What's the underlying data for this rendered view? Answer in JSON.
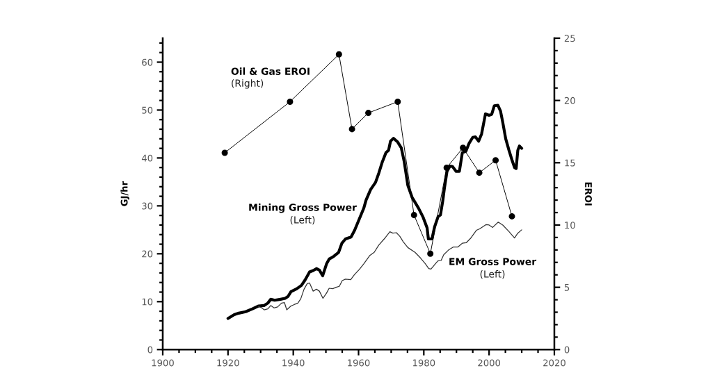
{
  "chart_data": {
    "type": "line",
    "ylabel": "GJ/hr",
    "y2label": "EROI",
    "xlim": [
      1900,
      2020
    ],
    "xticks": [
      1900,
      {
        "value": 1905,
        "label": null
      },
      {
        "value": 1910,
        "label": null
      },
      {
        "value": 1915,
        "label": null
      },
      1920,
      {
        "value": 1925,
        "label": null
      },
      {
        "value": 1930,
        "label": null
      },
      {
        "value": 1935,
        "label": null
      },
      1940,
      {
        "value": 1945,
        "label": null
      },
      {
        "value": 1950,
        "label": null
      },
      {
        "value": 1955,
        "label": null
      },
      1960,
      {
        "value": 1965,
        "label": null
      },
      {
        "value": 1970,
        "label": null
      },
      {
        "value": 1975,
        "label": null
      },
      1980,
      {
        "value": 1985,
        "label": null
      },
      {
        "value": 1990,
        "label": null
      },
      {
        "value": 1995,
        "label": null
      },
      2000,
      {
        "value": 2005,
        "label": null
      },
      {
        "value": 2010,
        "label": null
      },
      {
        "value": 2015,
        "label": null
      },
      2020
    ],
    "ylim": [
      0,
      65
    ],
    "yticks": [
      0,
      {
        "value": 2,
        "label": null
      },
      {
        "value": 4,
        "label": null
      },
      {
        "value": 6,
        "label": null
      },
      {
        "value": 8,
        "label": null
      },
      10,
      {
        "value": 12,
        "label": null
      },
      {
        "value": 14,
        "label": null
      },
      {
        "value": 16,
        "label": null
      },
      {
        "value": 18,
        "label": null
      },
      20,
      {
        "value": 22,
        "label": null
      },
      {
        "value": 24,
        "label": null
      },
      {
        "value": 26,
        "label": null
      },
      {
        "value": 28,
        "label": null
      },
      30,
      {
        "value": 32,
        "label": null
      },
      {
        "value": 34,
        "label": null
      },
      {
        "value": 36,
        "label": null
      },
      {
        "value": 38,
        "label": null
      },
      40,
      {
        "value": 42,
        "label": null
      },
      {
        "value": 44,
        "label": null
      },
      {
        "value": 46,
        "label": null
      },
      {
        "value": 48,
        "label": null
      },
      50,
      {
        "value": 52,
        "label": null
      },
      {
        "value": 54,
        "label": null
      },
      {
        "value": 56,
        "label": null
      },
      {
        "value": 58,
        "label": null
      },
      60,
      {
        "value": 62,
        "label": null
      },
      {
        "value": 64,
        "label": null
      }
    ],
    "y2lim": [
      0,
      25
    ],
    "y2ticks": [
      0,
      {
        "value": 1,
        "label": null
      },
      {
        "value": 2,
        "label": null
      },
      {
        "value": 3,
        "label": null
      },
      {
        "value": 4,
        "label": null
      },
      5,
      {
        "value": 6,
        "label": null
      },
      {
        "value": 7,
        "label": null
      },
      {
        "value": 8,
        "label": null
      },
      {
        "value": 9,
        "label": null
      },
      10,
      {
        "value": 11,
        "label": null
      },
      {
        "value": 12,
        "label": null
      },
      {
        "value": 13,
        "label": null
      },
      {
        "value": 14,
        "label": null
      },
      15,
      {
        "value": 16,
        "label": null
      },
      {
        "value": 17,
        "label": null
      },
      {
        "value": 18,
        "label": null
      },
      {
        "value": 19,
        "label": null
      },
      20,
      {
        "value": 21,
        "label": null
      },
      {
        "value": 22,
        "label": null
      },
      {
        "value": 23,
        "label": null
      },
      {
        "value": 24,
        "label": null
      },
      25
    ],
    "annotations": [
      "(Right)",
      "(Left)",
      "(Left)"
    ],
    "series": [
      {
        "name": "Oil & Gas EROI",
        "axis": "y2",
        "color": "#000000",
        "marker": "circle",
        "line_style": "solid",
        "x": [
          1919,
          1939,
          1954,
          1958,
          1963,
          1972,
          1977,
          1982,
          1987,
          1992,
          1997,
          2002,
          2007
        ],
        "values": [
          15.8,
          19.9,
          23.7,
          17.7,
          19.0,
          19.9,
          10.8,
          7.7,
          14.6,
          16.2,
          14.2,
          15.2,
          10.7
        ]
      },
      {
        "name": "Mining Gross Power",
        "color": "#000000",
        "marker": "none",
        "line_style": "solid",
        "x": [
          1920,
          1921.9,
          1923.3,
          1925.4,
          1927.5,
          1929.3,
          1931.1,
          1932.2,
          1933.1,
          1934.3,
          1936.1,
          1937.5,
          1938.4,
          1939.3,
          1941.1,
          1942.5,
          1943.6,
          1945,
          1946.1,
          1947.1,
          1948,
          1949,
          1950.2,
          1951,
          1952.3,
          1953.9,
          1954.9,
          1956,
          1957.7,
          1958.8,
          1961.6,
          1962.3,
          1963.7,
          1965.2,
          1966.2,
          1967.3,
          1968.4,
          1969.2,
          1969.8,
          1970.7,
          1971.9,
          1973.1,
          1974,
          1975.1,
          1976.4,
          1978.4,
          1979.8,
          1981,
          1981.4,
          1982.5,
          1983.3,
          1984.4,
          1985.1,
          1985.8,
          1986.3,
          1987.1,
          1988,
          1988.8,
          1989.9,
          1990.9,
          1991.8,
          1992.9,
          1993.9,
          1995,
          1995.8,
          1996.8,
          1997.7,
          1998.9,
          2000,
          2000.8,
          2001.6,
          2002.7,
          2003.5,
          2004.2,
          2005.1,
          2006.1,
          2007.1,
          2007.8,
          2008.3,
          2008.8,
          2009.3,
          2010
        ],
        "values": [
          6.5,
          7.3,
          7.6,
          7.9,
          8.5,
          9.1,
          9.2,
          9.7,
          10.5,
          10.3,
          10.5,
          10.7,
          11.1,
          12.1,
          12.7,
          13.4,
          14.5,
          16.2,
          16.5,
          16.9,
          16.6,
          15.4,
          17.9,
          18.9,
          19.4,
          20.3,
          22.2,
          23.1,
          23.5,
          24.9,
          29.5,
          31.2,
          33.4,
          34.9,
          36.8,
          39.2,
          41.1,
          41.6,
          43.5,
          44.1,
          43.4,
          42.1,
          39.2,
          34.3,
          31.8,
          29.5,
          27.6,
          25.4,
          23.1,
          23.1,
          25.6,
          27.8,
          28.1,
          31.0,
          33.6,
          37.2,
          38.3,
          38.2,
          37.2,
          37.2,
          41.1,
          41.4,
          43.1,
          44.3,
          44.4,
          43.5,
          45.0,
          49.2,
          48.9,
          49.1,
          50.9,
          51.0,
          49.8,
          47.4,
          44.0,
          41.6,
          39.4,
          38.0,
          37.8,
          41.6,
          42.5,
          42.0
        ]
      },
      {
        "name": "EM Gross Power",
        "color": "#333333",
        "marker": "none",
        "line_style": "solid",
        "x": [
          1929.3,
          1930.1,
          1931.1,
          1932.2,
          1933.1,
          1934.1,
          1935.2,
          1936.4,
          1937.3,
          1938,
          1939.3,
          1940.3,
          1941.4,
          1942.3,
          1943.3,
          1944.3,
          1945,
          1946.1,
          1947.1,
          1948,
          1949.1,
          1950.2,
          1951,
          1952.1,
          1953.1,
          1954.1,
          1955,
          1956,
          1957.6,
          1958.7,
          1960.2,
          1961.6,
          1963.4,
          1964.8,
          1966.2,
          1968,
          1969.6,
          1970.5,
          1971.6,
          1972.6,
          1973.7,
          1975.1,
          1977.3,
          1979,
          1980.5,
          1981.5,
          1982.2,
          1983.3,
          1984.3,
          1985.3,
          1986.1,
          1987.6,
          1989,
          1990.4,
          1991.8,
          1993,
          1994.3,
          1996.1,
          1997.1,
          1999.1,
          2000,
          2001.1,
          2002.8,
          2004.2,
          2006,
          2007.8,
          2008.8,
          2010
        ],
        "values": [
          9.0,
          8.8,
          8.3,
          8.5,
          9.2,
          8.7,
          8.9,
          9.7,
          9.8,
          8.3,
          9.1,
          9.4,
          9.7,
          10.6,
          12.6,
          13.8,
          13.9,
          12.2,
          12.6,
          12.2,
          10.7,
          11.8,
          12.8,
          12.7,
          13.0,
          13.2,
          14.4,
          14.7,
          14.6,
          15.6,
          16.7,
          17.9,
          19.6,
          20.3,
          21.8,
          23.2,
          24.6,
          24.3,
          24.4,
          23.7,
          22.5,
          21.3,
          20.3,
          19.1,
          17.9,
          16.9,
          16.8,
          17.7,
          18.5,
          18.6,
          19.8,
          20.8,
          21.4,
          21.4,
          22.2,
          22.3,
          23.2,
          24.9,
          25.2,
          26.1,
          26.0,
          25.5,
          26.6,
          26.0,
          24.7,
          23.3,
          24.3,
          25.0
        ]
      }
    ]
  }
}
